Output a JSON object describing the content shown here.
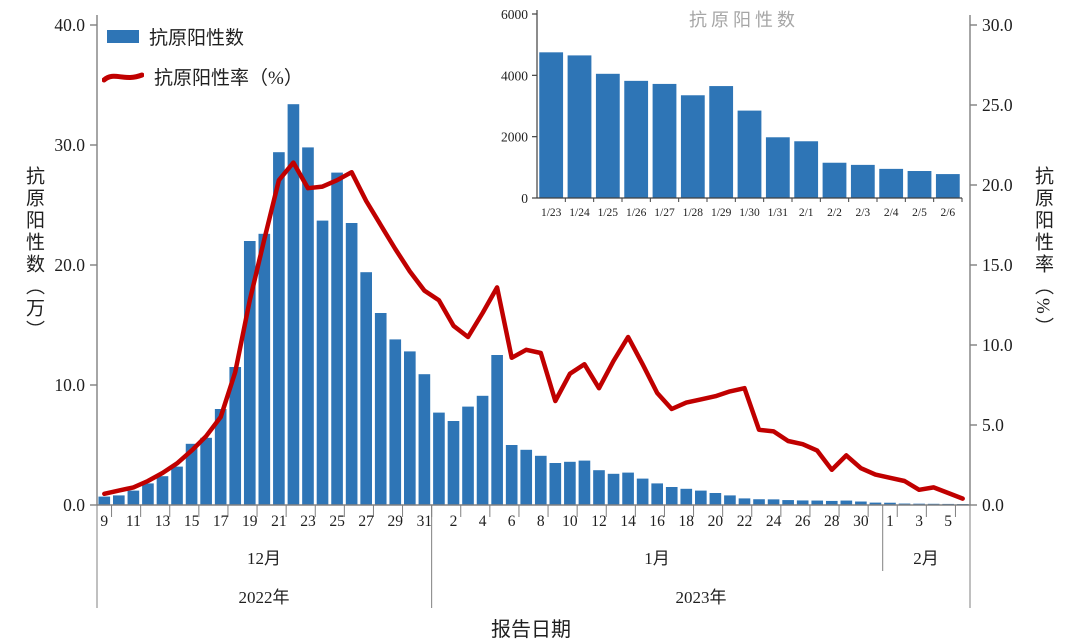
{
  "figure": {
    "legend": [
      {
        "label": "抗原阳性数",
        "type": "bar",
        "color": "#2e75b6"
      },
      {
        "label": "抗原阳性率（%）",
        "type": "line",
        "color": "#c00000"
      }
    ],
    "left_axis_title": "抗原阳性数（万）",
    "right_axis_title": "抗原阳性率（%）",
    "x_axis_title": "报告日期",
    "month_labels": [
      "12月",
      "1月",
      "2月"
    ],
    "year_labels": [
      "2022年",
      "2023年"
    ],
    "axis_color": "#808080",
    "text_color": "#1f1f1f"
  },
  "chart_data": [
    {
      "id": "main",
      "type": "bar",
      "title": "",
      "xlabel": "报告日期",
      "categories": [
        "12/9",
        "12/10",
        "12/11",
        "12/12",
        "12/13",
        "12/14",
        "12/15",
        "12/16",
        "12/17",
        "12/18",
        "12/19",
        "12/20",
        "12/21",
        "12/22",
        "12/23",
        "12/24",
        "12/25",
        "12/26",
        "12/27",
        "12/28",
        "12/29",
        "12/30",
        "12/31",
        "1/1",
        "1/2",
        "1/3",
        "1/4",
        "1/5",
        "1/6",
        "1/7",
        "1/8",
        "1/9",
        "1/10",
        "1/11",
        "1/12",
        "1/13",
        "1/14",
        "1/15",
        "1/16",
        "1/17",
        "1/18",
        "1/19",
        "1/20",
        "1/21",
        "1/22",
        "1/23",
        "1/24",
        "1/25",
        "1/26",
        "1/27",
        "1/28",
        "1/29",
        "1/30",
        "1/31",
        "2/1",
        "2/2",
        "2/3",
        "2/4",
        "2/5",
        "2/6"
      ],
      "x_tick_labels": [
        "9",
        "11",
        "13",
        "15",
        "17",
        "19",
        "21",
        "23",
        "25",
        "27",
        "29",
        "31",
        "2",
        "4",
        "6",
        "8",
        "10",
        "12",
        "14",
        "16",
        "18",
        "20",
        "22",
        "24",
        "26",
        "28",
        "30",
        "1",
        "3",
        "5"
      ],
      "series": [
        {
          "name": "抗原阳性数",
          "type": "bar",
          "axis": "left",
          "unit": "万",
          "color": "#2e75b6",
          "values": [
            0.7,
            0.8,
            1.2,
            1.8,
            2.4,
            3.2,
            5.1,
            5.6,
            8.0,
            11.5,
            22.0,
            22.6,
            29.4,
            33.4,
            29.8,
            23.7,
            27.7,
            23.5,
            19.4,
            16.0,
            13.8,
            12.8,
            10.9,
            7.7,
            7.0,
            8.2,
            9.1,
            12.5,
            5.0,
            4.6,
            4.1,
            3.5,
            3.6,
            3.7,
            2.9,
            2.6,
            2.7,
            2.2,
            1.8,
            1.5,
            1.35,
            1.2,
            1.0,
            0.8,
            0.55,
            0.48,
            0.47,
            0.41,
            0.38,
            0.37,
            0.34,
            0.37,
            0.29,
            0.2,
            0.19,
            0.12,
            0.11,
            0.1,
            0.09,
            0.08
          ]
        },
        {
          "name": "抗原阳性率（%）",
          "type": "line",
          "axis": "right",
          "unit": "%",
          "color": "#c00000",
          "values": [
            0.7,
            0.9,
            1.1,
            1.5,
            2.0,
            2.6,
            3.4,
            4.3,
            5.5,
            8.3,
            12.8,
            16.6,
            20.3,
            21.4,
            19.8,
            19.9,
            20.3,
            20.8,
            19.0,
            17.5,
            16.0,
            14.6,
            13.4,
            12.8,
            11.2,
            10.5,
            12.0,
            13.6,
            9.2,
            9.7,
            9.5,
            6.5,
            8.2,
            8.8,
            7.3,
            9.0,
            10.5,
            8.8,
            7.0,
            6.0,
            6.4,
            6.6,
            6.8,
            7.1,
            7.3,
            4.7,
            4.6,
            4.0,
            3.8,
            3.4,
            2.2,
            3.1,
            2.3,
            1.9,
            1.7,
            1.5,
            0.95,
            1.1,
            0.75,
            0.4
          ]
        }
      ],
      "left_axis": {
        "title": "抗原阳性数（万）",
        "min": 0,
        "max": 40,
        "step": 10
      },
      "right_axis": {
        "title": "抗原阳性率（%）",
        "min": 0,
        "max": 30,
        "step": 5
      },
      "x_groups": [
        {
          "month": "12月",
          "year": "2022年",
          "start": 0,
          "end": 22
        },
        {
          "month": "1月",
          "year": "2023年",
          "start": 23,
          "end": 53
        },
        {
          "month": "2月",
          "year": "",
          "start": 54,
          "end": 59
        }
      ],
      "grid": false,
      "legend_position": "top-left"
    },
    {
      "id": "inset",
      "type": "bar",
      "title": "抗原阳性数",
      "title_color": "#a6a6a6",
      "categories": [
        "1/23",
        "1/24",
        "1/25",
        "1/26",
        "1/27",
        "1/28",
        "1/29",
        "1/30",
        "1/31",
        "2/1",
        "2/2",
        "2/3",
        "2/4",
        "2/5",
        "2/6"
      ],
      "values": [
        4750,
        4650,
        4050,
        3820,
        3720,
        3350,
        3650,
        2850,
        1980,
        1850,
        1150,
        1080,
        950,
        880,
        780
      ],
      "ylim": [
        0,
        6000
      ],
      "y_ticks": [
        0,
        2000,
        4000,
        6000
      ],
      "bar_color": "#2e75b6",
      "grid": false
    }
  ]
}
